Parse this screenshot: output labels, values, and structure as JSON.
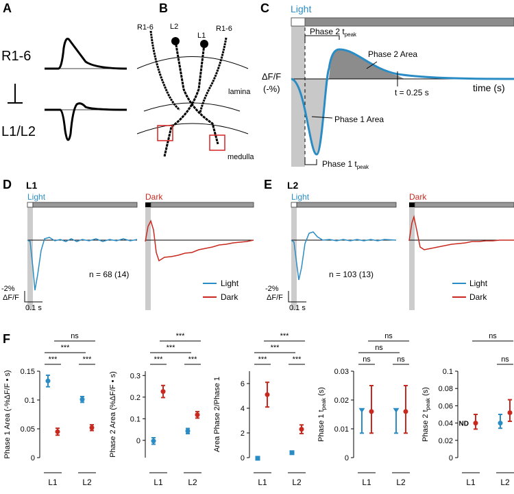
{
  "panel_a": {
    "letter": "A",
    "top_label": "R1-6",
    "bottom_label": "L1/L2"
  },
  "panel_b": {
    "letter": "B",
    "labels": [
      "R1-6",
      "L2",
      "L1",
      "R1-6"
    ],
    "lamina": "lamina",
    "medulla": "medulla"
  },
  "panel_c": {
    "letter": "C",
    "stimulus": "Light",
    "phase2_tpeak": "Phase 2 t",
    "phase2_area": "Phase 2 Area",
    "yaxis": "ΔF/F",
    "yunit": "(-%)",
    "t_mark": "t = 0.25 s",
    "xaxis": "time (s)",
    "phase1_area": "Phase 1 Area",
    "phase1_tpeak": "Phase 1 t",
    "sub": "peak"
  },
  "panel_d": {
    "letter": "D",
    "cell": "L1",
    "light": "Light",
    "dark": "Dark",
    "n": "n = 68 (14)",
    "scale_y": "-2%",
    "scale_unit": "ΔF/F",
    "scale_x": "0.1 s",
    "legend": [
      "Light",
      "Dark"
    ]
  },
  "panel_e": {
    "letter": "E",
    "cell": "L2",
    "light": "Light",
    "dark": "Dark",
    "n": "n = 103 (13)",
    "scale_y": "-2%",
    "scale_unit": "ΔF/F",
    "scale_x": "0.1 s",
    "legend": [
      "Light",
      "Dark"
    ]
  },
  "panel_f": {
    "letter": "F"
  },
  "chart_data": [
    {
      "type": "errorbar",
      "ylabel": "Phase 1 Area (-%ΔF/F • s)",
      "categories": [
        "L1",
        "L2"
      ],
      "ylim": [
        0,
        0.15
      ],
      "yticks": [
        0,
        0.05,
        0.1,
        0.15
      ],
      "sig": [
        "ns",
        "***",
        "***",
        "***"
      ],
      "series": [
        {
          "name": "Light",
          "color": "#2a8cc4",
          "marker": "circle",
          "values": [
            0.133,
            0.101
          ],
          "lower": [
            0.123,
            0.096
          ],
          "upper": [
            0.143,
            0.106
          ]
        },
        {
          "name": "Dark",
          "color": "#c8281e",
          "marker": "circle",
          "values": [
            0.045,
            0.052
          ],
          "lower": [
            0.039,
            0.047
          ],
          "upper": [
            0.051,
            0.057
          ]
        }
      ]
    },
    {
      "type": "errorbar",
      "ylabel": "Phase 2 Area (%ΔF/F • s)",
      "categories": [
        "L1",
        "L2"
      ],
      "ylim": [
        -0.08,
        0.32
      ],
      "yticks": [
        0,
        0.1,
        0.2,
        0.3
      ],
      "sig": [
        "***",
        "***",
        "***",
        "***"
      ],
      "series": [
        {
          "name": "Light",
          "color": "#2a8cc4",
          "marker": "circle",
          "values": [
            -0.003,
            0.043
          ],
          "lower": [
            -0.018,
            0.031
          ],
          "upper": [
            0.012,
            0.055
          ]
        },
        {
          "name": "Dark",
          "color": "#c8281e",
          "marker": "circle",
          "values": [
            0.226,
            0.118
          ],
          "lower": [
            0.198,
            0.103
          ],
          "upper": [
            0.254,
            0.133
          ]
        }
      ]
    },
    {
      "type": "errorbar",
      "ylabel": "Area Phase 2/Phase 1",
      "categories": [
        "L1",
        "L2"
      ],
      "ylim": [
        0,
        7
      ],
      "yticks": [
        0,
        2,
        4,
        6
      ],
      "sig": [
        "***",
        "***",
        "***",
        "***"
      ],
      "series": [
        {
          "name": "Light",
          "color": "#2a8cc4",
          "marker": "square",
          "values": [
            -0.05,
            0.4
          ],
          "lower": [
            null,
            null
          ],
          "upper": [
            null,
            null
          ]
        },
        {
          "name": "Dark",
          "color": "#c8281e",
          "marker": "circle",
          "values": [
            5.1,
            2.3
          ],
          "lower": [
            4.1,
            1.95
          ],
          "upper": [
            6.1,
            2.65
          ]
        }
      ]
    },
    {
      "type": "errorbar",
      "ylabel": "Phase 1 t",
      "ylabel_sub": "peak",
      "ylabel_end": "(s)",
      "categories": [
        "L1",
        "L2"
      ],
      "ylim": [
        0,
        0.03
      ],
      "yticks": [
        0,
        0.01,
        0.02,
        0.03
      ],
      "sig": [
        "ns",
        "ns",
        "ns",
        "ns"
      ],
      "series": [
        {
          "name": "Light",
          "color": "#2a8cc4",
          "marker": "triangle",
          "values": [
            0.0165,
            0.0165
          ],
          "lower": [
            0.0085,
            0.0085
          ],
          "upper": [
            null,
            null
          ]
        },
        {
          "name": "Dark",
          "color": "#c8281e",
          "marker": "circle",
          "values": [
            0.016,
            0.016
          ],
          "lower": [
            0.0085,
            0.0085
          ],
          "upper": [
            0.025,
            0.025
          ]
        }
      ]
    },
    {
      "type": "errorbar",
      "ylabel": "Phase 2 t",
      "ylabel_sub": "peak",
      "ylabel_end": "(s)",
      "categories": [
        "L1",
        "L2"
      ],
      "ylim": [
        0,
        0.1
      ],
      "yticks": [
        0,
        0.02,
        0.04,
        0.06,
        0.08,
        0.1
      ],
      "sig": [
        "ns",
        "ns"
      ],
      "annotation": "ND",
      "series": [
        {
          "name": "Light",
          "color": "#2a8cc4",
          "marker": "circle",
          "values": [
            null,
            0.04
          ],
          "lower": [
            null,
            0.034
          ],
          "upper": [
            null,
            0.05
          ]
        },
        {
          "name": "Dark",
          "color": "#c8281e",
          "marker": "circle",
          "values": [
            0.04,
            0.052
          ],
          "lower": [
            0.033,
            0.042
          ],
          "upper": [
            0.05,
            0.067
          ]
        }
      ]
    }
  ]
}
